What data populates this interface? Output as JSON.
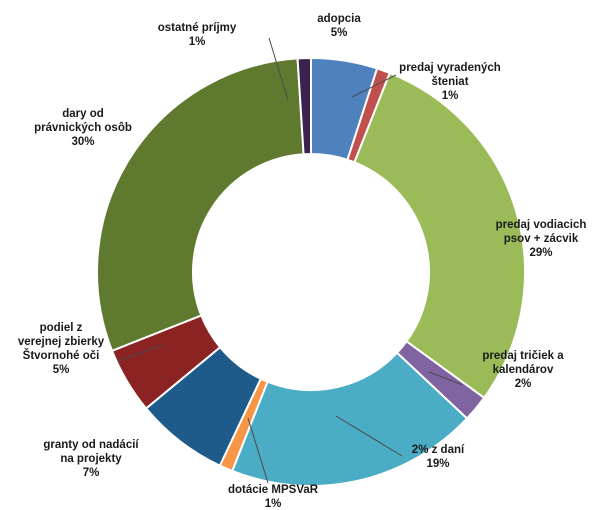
{
  "chart_data": {
    "type": "pie",
    "variant": "donut",
    "legend": "none",
    "slices": [
      {
        "label_lines": [
          "adopcia",
          "5%"
        ],
        "value": 5,
        "color": "#4f81bd"
      },
      {
        "label_lines": [
          "predaj vyradených",
          "šteniat",
          "1%"
        ],
        "value": 1,
        "color": "#c0504d"
      },
      {
        "label_lines": [
          "predaj vodiacich",
          "psov + zácvik",
          "29%"
        ],
        "value": 29,
        "color": "#9bbb59"
      },
      {
        "label_lines": [
          "predaj tričiek a",
          "kalendárov",
          "2%"
        ],
        "value": 2,
        "color": "#8064a2"
      },
      {
        "label_lines": [
          "2% z daní",
          "19%"
        ],
        "value": 19,
        "color": "#4bacc6"
      },
      {
        "label_lines": [
          "dotácie MPSVaR",
          "1%"
        ],
        "value": 1,
        "color": "#f79646"
      },
      {
        "label_lines": [
          "granty od nadácií",
          "na projekty",
          "7%"
        ],
        "value": 7,
        "color": "#1f5b8a"
      },
      {
        "label_lines": [
          "podiel z",
          "verejnej zbierky",
          "Štvornohé oči",
          "5%"
        ],
        "value": 5,
        "color": "#8b2323"
      },
      {
        "label_lines": [
          "dary od",
          "právnických osôb",
          "30%"
        ],
        "value": 30,
        "color": "#5f7a2e"
      },
      {
        "label_lines": [
          "ostatné príjmy",
          "1%"
        ],
        "value": 1,
        "color": "#3b2350"
      }
    ]
  }
}
